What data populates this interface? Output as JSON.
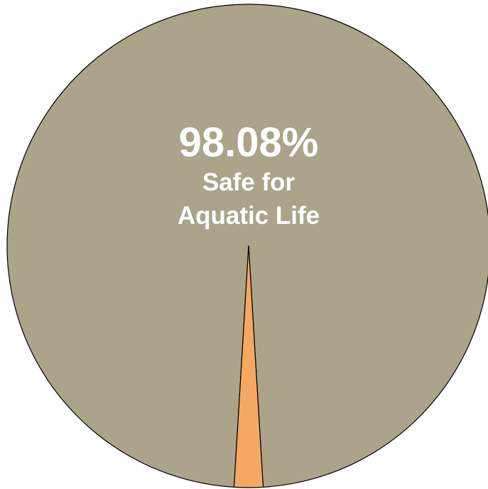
{
  "chart_data": {
    "type": "pie",
    "title": "",
    "slices": [
      {
        "label": "98.08%\nSafe for\nAquatic Life",
        "value": 98.08,
        "color": "#aba38a"
      },
      {
        "label": "",
        "value": 1.92,
        "color": "#f5a862"
      }
    ],
    "stroke_color": "#000000",
    "start": "bottom"
  },
  "labels": {
    "percent": "98.08%",
    "line1": "Safe for",
    "line2": "Aquatic Life"
  }
}
